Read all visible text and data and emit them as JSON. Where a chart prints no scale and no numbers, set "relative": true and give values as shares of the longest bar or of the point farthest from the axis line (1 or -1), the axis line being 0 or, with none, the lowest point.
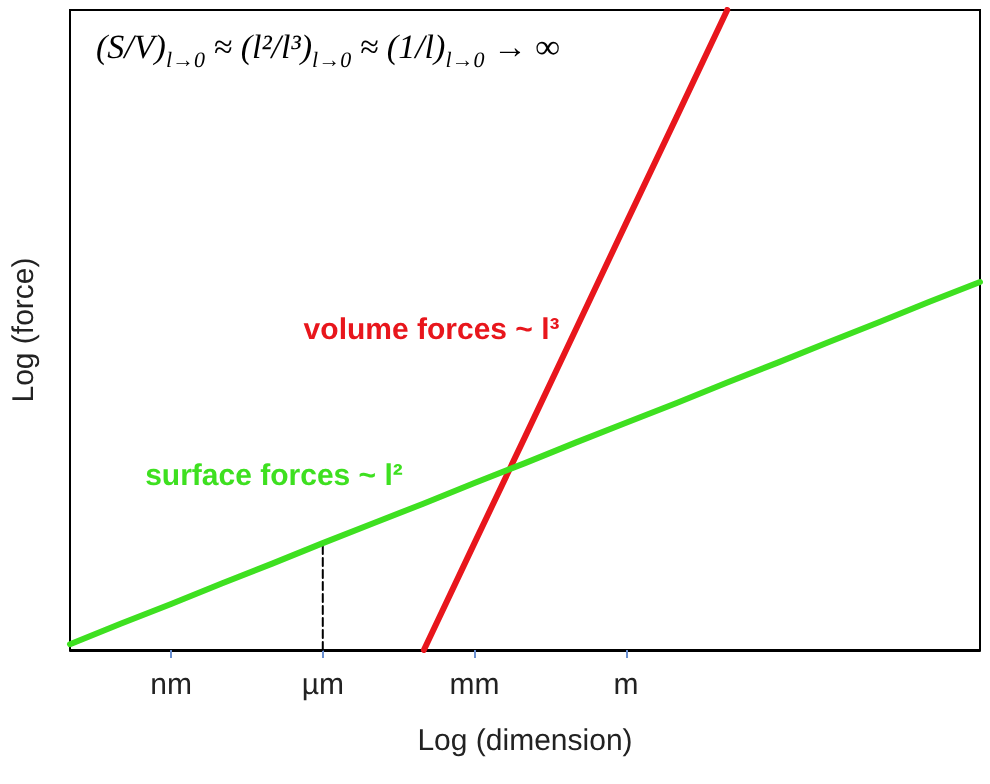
{
  "chart_data": {
    "type": "line",
    "relative": true,
    "xlabel": "Log (dimension)",
    "ylabel": "Log (force)",
    "annotations": [
      "(S/V)$_{l→0}$ ≈ (l²/l³)$_{l→0}$ ≈ (1/l)$_{l→0}$ → ∞"
    ],
    "categories": [
      null,
      null,
      "nm",
      null,
      null,
      "µm",
      null,
      null,
      "mm",
      null,
      null,
      "m",
      null,
      null,
      null,
      null,
      null,
      null,
      null
    ],
    "series": [
      {
        "name": "volume forces ~ l³",
        "color": "#e8161c",
        "values": [
          null,
          null,
          null,
          null,
          null,
          null,
          null,
          0,
          0.167,
          0.333,
          0.5,
          0.667,
          0.833,
          1,
          null,
          null,
          null,
          null,
          null
        ]
      },
      {
        "name": "surface forces ~ l²",
        "color": "#3ee020",
        "values": [
          0.009,
          0.041,
          0.072,
          0.104,
          0.135,
          0.167,
          0.198,
          0.229,
          0.261,
          0.292,
          0.324,
          0.355,
          0.386,
          0.418,
          0.449,
          0.481,
          0.512,
          0.544,
          0.575
        ]
      },
      {
        "color": "#000000",
        "x": [
          "µm",
          "µm"
        ],
        "values": [
          0,
          0.167
        ],
        "line_style": "dashed"
      }
    ],
    "grid": false,
    "legend": false,
    "marker": "none"
  }
}
